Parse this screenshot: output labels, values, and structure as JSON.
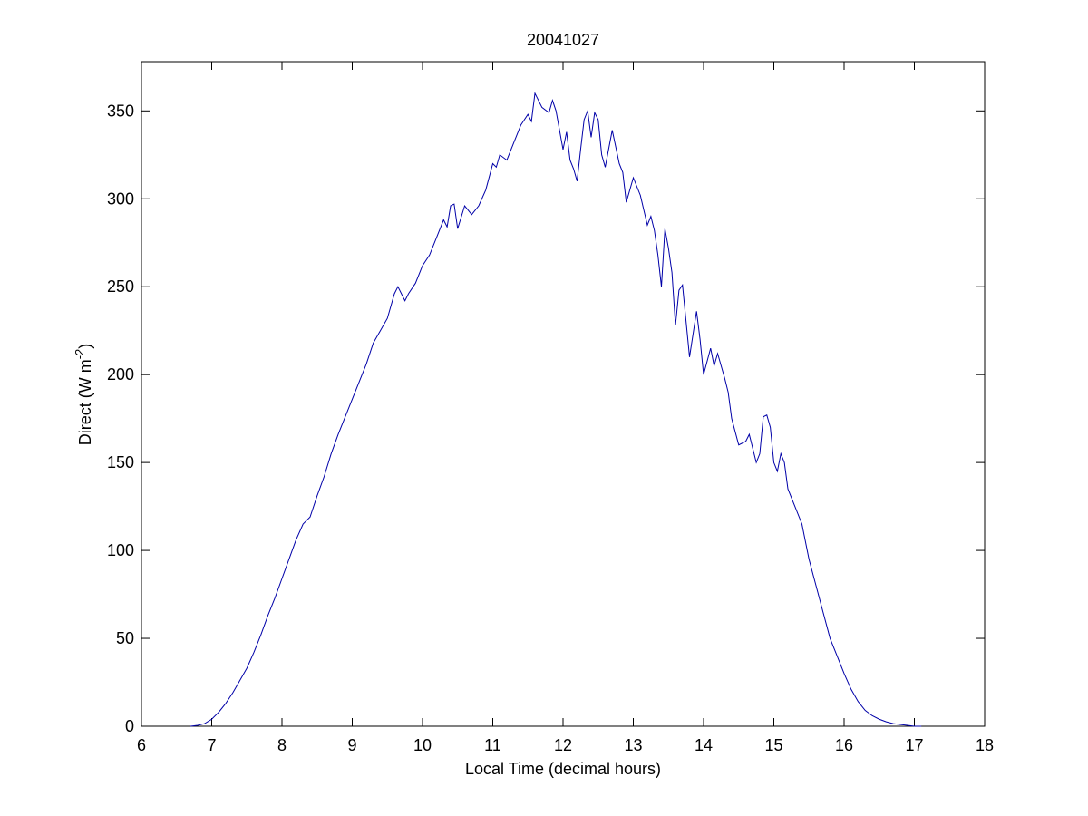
{
  "chart_data": {
    "type": "line",
    "title": "20041027",
    "xlabel": "Local Time (decimal hours)",
    "ylabel": [
      "Direct (W m",
      "-2",
      ")"
    ],
    "xlim": [
      6,
      18
    ],
    "xticks": [
      6,
      7,
      8,
      9,
      10,
      11,
      12,
      13,
      14,
      15,
      16,
      17,
      18
    ],
    "ylim": [
      0,
      378
    ],
    "yticks": [
      0,
      50,
      100,
      150,
      200,
      250,
      300,
      350
    ],
    "series": [
      {
        "color": "#0000a8",
        "x": [
          6.7,
          6.8,
          6.9,
          7.0,
          7.1,
          7.2,
          7.3,
          7.4,
          7.5,
          7.6,
          7.7,
          7.8,
          7.9,
          8.0,
          8.1,
          8.2,
          8.3,
          8.4,
          8.5,
          8.6,
          8.7,
          8.8,
          8.9,
          9.0,
          9.1,
          9.2,
          9.3,
          9.4,
          9.5,
          9.6,
          9.65,
          9.7,
          9.75,
          9.8,
          9.9,
          10.0,
          10.1,
          10.2,
          10.3,
          10.35,
          10.4,
          10.45,
          10.5,
          10.6,
          10.7,
          10.8,
          10.9,
          11.0,
          11.05,
          11.1,
          11.2,
          11.3,
          11.4,
          11.5,
          11.55,
          11.6,
          11.7,
          11.8,
          11.85,
          11.9,
          12.0,
          12.05,
          12.1,
          12.15,
          12.2,
          12.25,
          12.3,
          12.35,
          12.4,
          12.45,
          12.5,
          12.55,
          12.6,
          12.7,
          12.8,
          12.85,
          12.9,
          13.0,
          13.1,
          13.2,
          13.25,
          13.3,
          13.35,
          13.4,
          13.45,
          13.5,
          13.55,
          13.6,
          13.65,
          13.7,
          13.8,
          13.9,
          13.95,
          14.0,
          14.1,
          14.15,
          14.2,
          14.3,
          14.35,
          14.4,
          14.5,
          14.6,
          14.65,
          14.75,
          14.8,
          14.85,
          14.9,
          14.95,
          15.0,
          15.05,
          15.1,
          15.15,
          15.2,
          15.3,
          15.4,
          15.5,
          15.6,
          15.7,
          15.8,
          15.9,
          16.0,
          16.1,
          16.2,
          16.3,
          16.4,
          16.5,
          16.6,
          16.7,
          16.8,
          16.9,
          17.0,
          17.1
        ],
        "values": [
          0,
          0.5,
          1.5,
          4,
          8,
          13,
          19,
          26,
          33,
          42,
          52,
          63,
          73,
          84,
          95,
          106,
          115,
          119,
          131,
          142,
          155,
          166,
          176,
          186,
          196,
          206,
          218,
          225,
          232,
          246,
          250,
          246,
          242,
          246,
          252,
          262,
          268,
          278,
          288,
          284,
          296,
          297,
          283,
          296,
          291,
          296,
          305,
          320,
          318,
          325,
          322,
          332,
          342,
          348,
          344,
          360,
          352,
          349,
          356,
          350,
          328,
          338,
          322,
          317,
          310,
          328,
          345,
          350,
          335,
          349,
          345,
          325,
          318,
          339,
          320,
          315,
          298,
          312,
          302,
          285,
          290,
          282,
          268,
          250,
          283,
          272,
          258,
          228,
          248,
          251,
          210,
          236,
          220,
          200,
          215,
          205,
          212,
          198,
          190,
          175,
          160,
          162,
          166,
          150,
          155,
          176,
          177,
          170,
          150,
          145,
          155,
          150,
          135,
          125,
          115,
          95,
          80,
          65,
          50,
          40,
          30,
          21,
          14,
          9,
          6,
          4,
          2.5,
          1.5,
          1,
          0.5,
          0,
          0
        ]
      }
    ]
  }
}
